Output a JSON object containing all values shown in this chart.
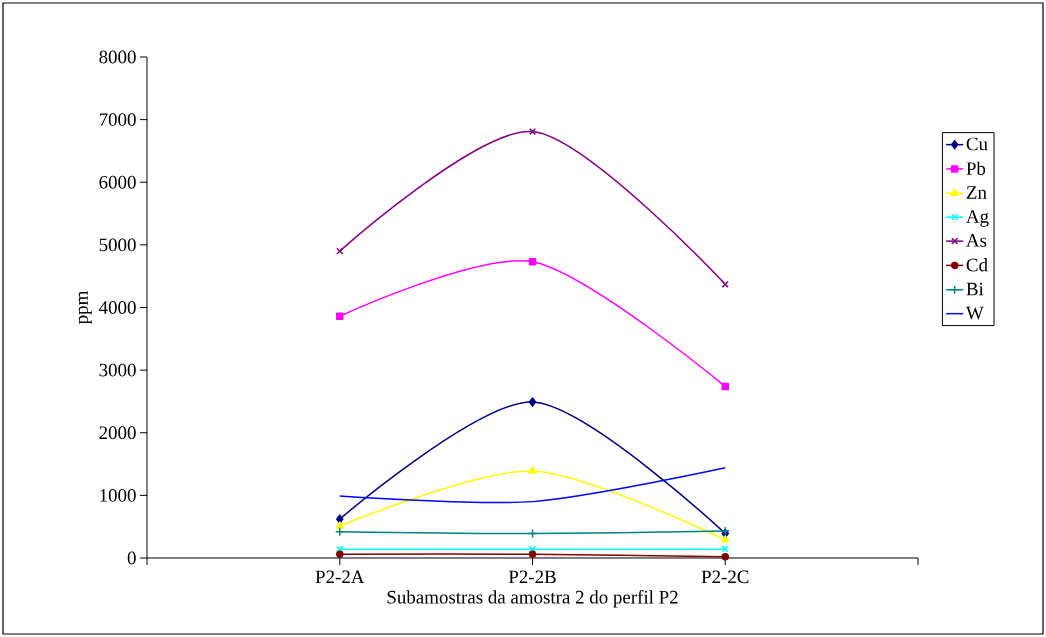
{
  "chart_data": {
    "type": "line",
    "xlabel": "Subamostras da amostra 2 do perfil P2",
    "ylabel": "ppm",
    "categories": [
      "P2-2A",
      "P2-2B",
      "P2-2C"
    ],
    "ylim": [
      0,
      8000
    ],
    "yticks": [
      0,
      1000,
      2000,
      3000,
      4000,
      5000,
      6000,
      7000,
      8000
    ],
    "grid": false,
    "legend": "right",
    "line_style": "solid",
    "series": [
      {
        "name": "Cu",
        "color": "#000080",
        "marker": "diamond",
        "values": [
          620,
          2490,
          390
        ]
      },
      {
        "name": "Pb",
        "color": "#ff00ff",
        "marker": "square",
        "values": [
          3860,
          4730,
          2740
        ]
      },
      {
        "name": "Zn",
        "color": "#ffff00",
        "marker": "triangle",
        "values": [
          510,
          1390,
          290
        ]
      },
      {
        "name": "Ag",
        "color": "#00ffff",
        "marker": "cross",
        "values": [
          140,
          140,
          140
        ]
      },
      {
        "name": "As",
        "color": "#800080",
        "marker": "cross",
        "values": [
          4900,
          6810,
          4370
        ]
      },
      {
        "name": "Cd",
        "color": "#800000",
        "marker": "circle",
        "values": [
          60,
          60,
          20
        ]
      },
      {
        "name": "Bi",
        "color": "#008080",
        "marker": "plus",
        "values": [
          420,
          390,
          430
        ]
      },
      {
        "name": "W",
        "color": "#0000ff",
        "marker": "none",
        "values": [
          990,
          900,
          1440
        ]
      }
    ]
  }
}
